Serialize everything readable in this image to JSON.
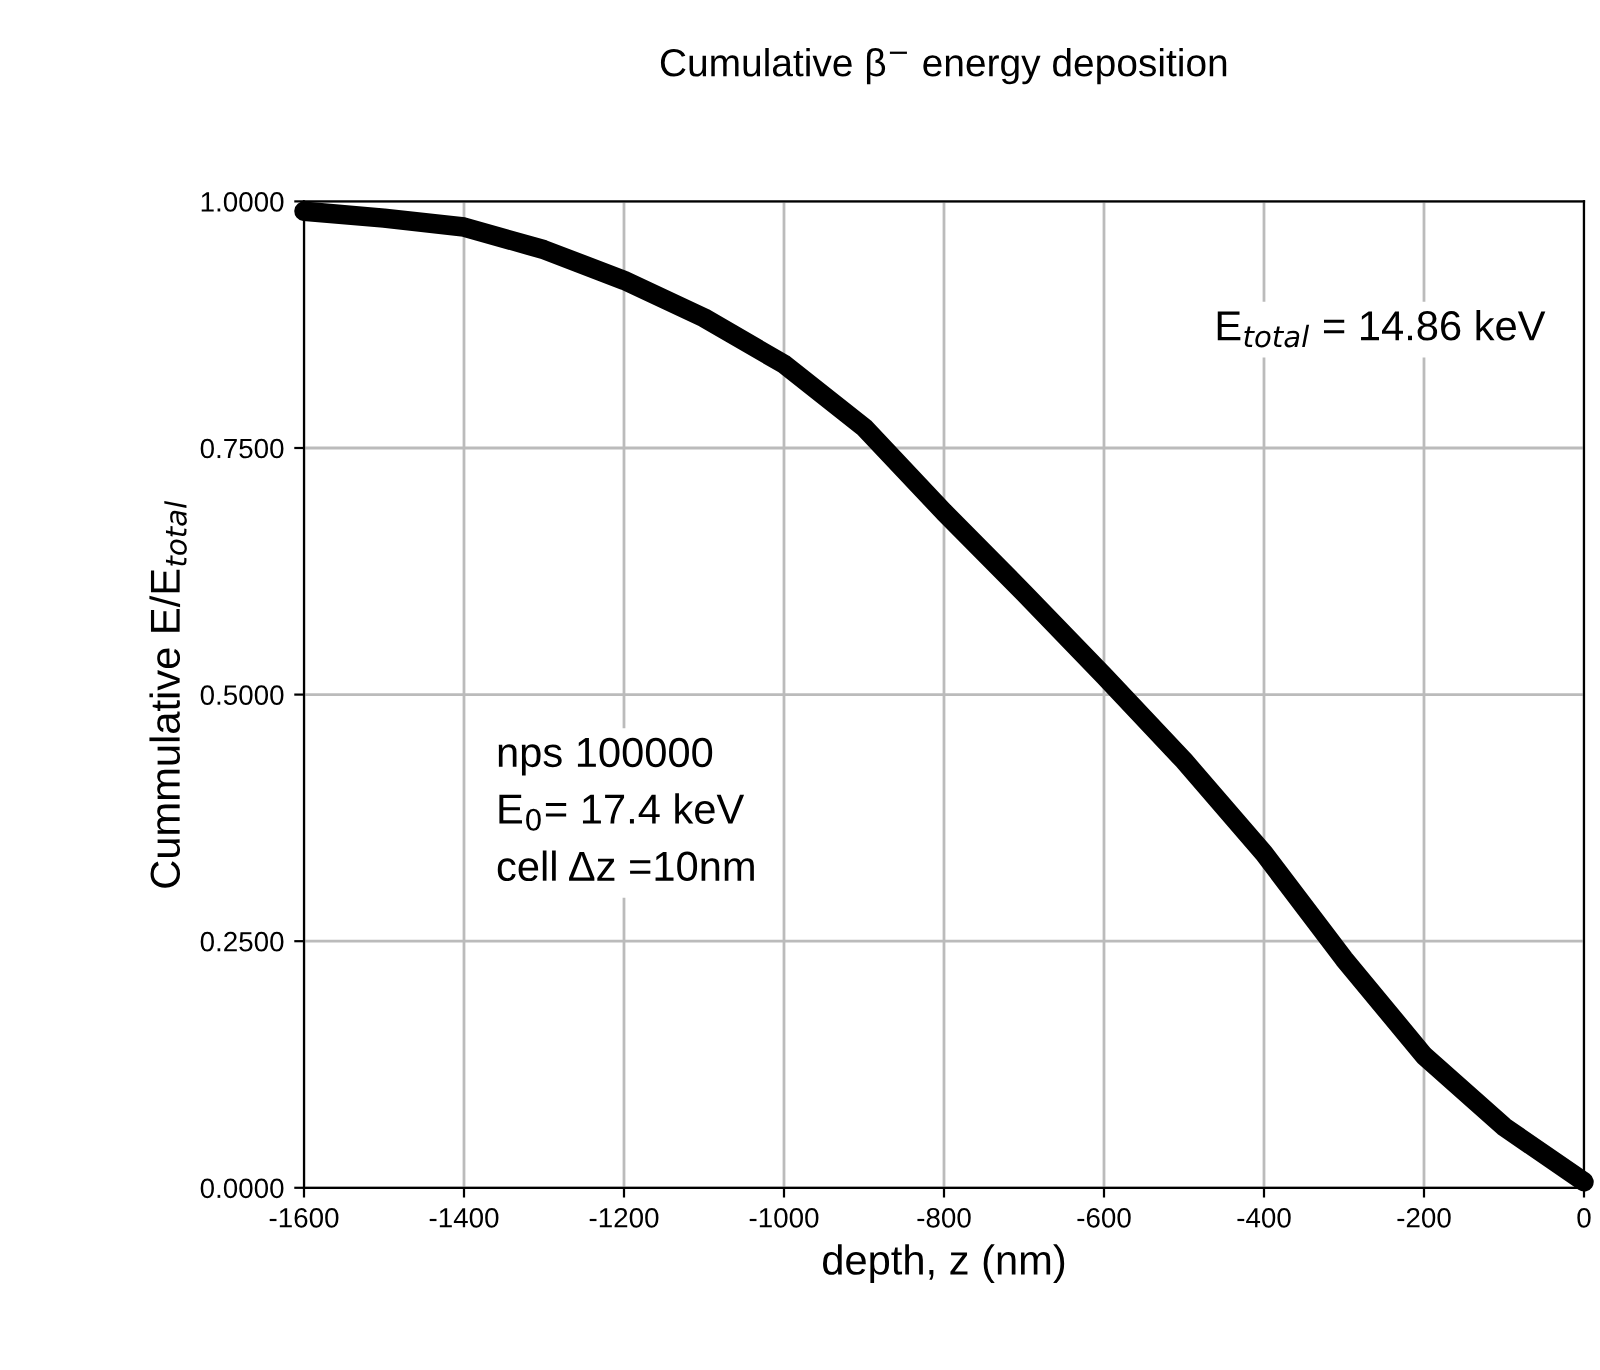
{
  "chart_data": {
    "type": "line",
    "title": "Cumulative β$^{−}$ energy deposition",
    "xlabel": "depth, z (nm)",
    "ylabel": "Cummulative E/E$_{total}$",
    "x": [
      -1600,
      -1500,
      -1400,
      -1300,
      -1200,
      -1100,
      -1000,
      -900,
      -800,
      -700,
      -600,
      -500,
      -400,
      -300,
      -200,
      -100,
      0
    ],
    "series": [
      {
        "color": "#000000",
        "values": [
          0.99,
          0.983,
          0.974,
          0.951,
          0.92,
          0.882,
          0.835,
          0.771,
          0.685,
          0.603,
          0.519,
          0.433,
          0.339,
          0.232,
          0.134,
          0.062,
          0.006
        ]
      }
    ],
    "xlim": [
      -1600,
      0
    ],
    "ylim": [
      0,
      1
    ],
    "xticks": [
      -1600,
      -1400,
      -1200,
      -1000,
      -800,
      -600,
      -400,
      -200,
      0
    ],
    "yticks": [
      {
        "value": 0,
        "label": "0.0000"
      },
      {
        "value": 0.25,
        "label": "0.2500"
      },
      {
        "value": 0.5,
        "label": "0.5000"
      },
      {
        "value": 0.75,
        "label": "0.7500"
      },
      {
        "value": 1,
        "label": "1.0000"
      }
    ],
    "grid": true,
    "line_style": "solid",
    "marker": "none",
    "annotations": [
      "E$_{total}$ = 14.86 keV",
      "nps 100000\nE$_{0}$= 17.4 keV\ncell Δz =10nm"
    ]
  }
}
